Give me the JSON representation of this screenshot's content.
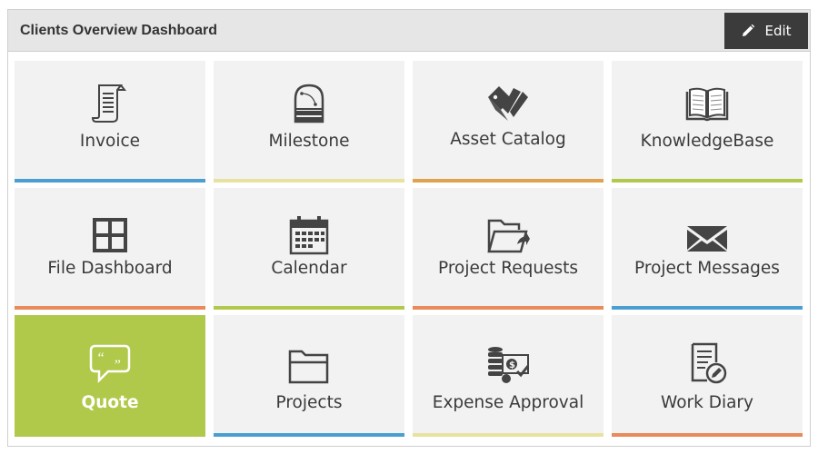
{
  "header": {
    "title": "Clients Overview Dashboard",
    "edit_label": "Edit"
  },
  "tiles": [
    {
      "label": "Invoice",
      "icon": "invoice-icon",
      "bar_color": "#4a9fd0"
    },
    {
      "label": "Milestone",
      "icon": "milestone-icon",
      "bar_color": "#e8e2a0"
    },
    {
      "label": "Asset Catalog",
      "icon": "asset-catalog-icon",
      "bar_color": "#e0a24a"
    },
    {
      "label": "KnowledgeBase",
      "icon": "book-icon",
      "bar_color": "#b0c94a"
    },
    {
      "label": "File Dashboard",
      "icon": "grid-icon",
      "bar_color": "#e88a5a"
    },
    {
      "label": "Calendar",
      "icon": "calendar-icon",
      "bar_color": "#b0c94a"
    },
    {
      "label": "Project Requests",
      "icon": "folder-share-icon",
      "bar_color": "#e88a5a"
    },
    {
      "label": "Project Messages",
      "icon": "envelope-icon",
      "bar_color": "#4a9fd0"
    },
    {
      "label": "Quote",
      "icon": "quote-bubble-icon",
      "bar_color": "#b0c94a",
      "active": true
    },
    {
      "label": "Projects",
      "icon": "folder-icon",
      "bar_color": "#4a9fd0"
    },
    {
      "label": "Expense Approval",
      "icon": "expense-icon",
      "bar_color": "#e8e2a0"
    },
    {
      "label": "Work Diary",
      "icon": "diary-icon",
      "bar_color": "#e88a5a"
    }
  ]
}
